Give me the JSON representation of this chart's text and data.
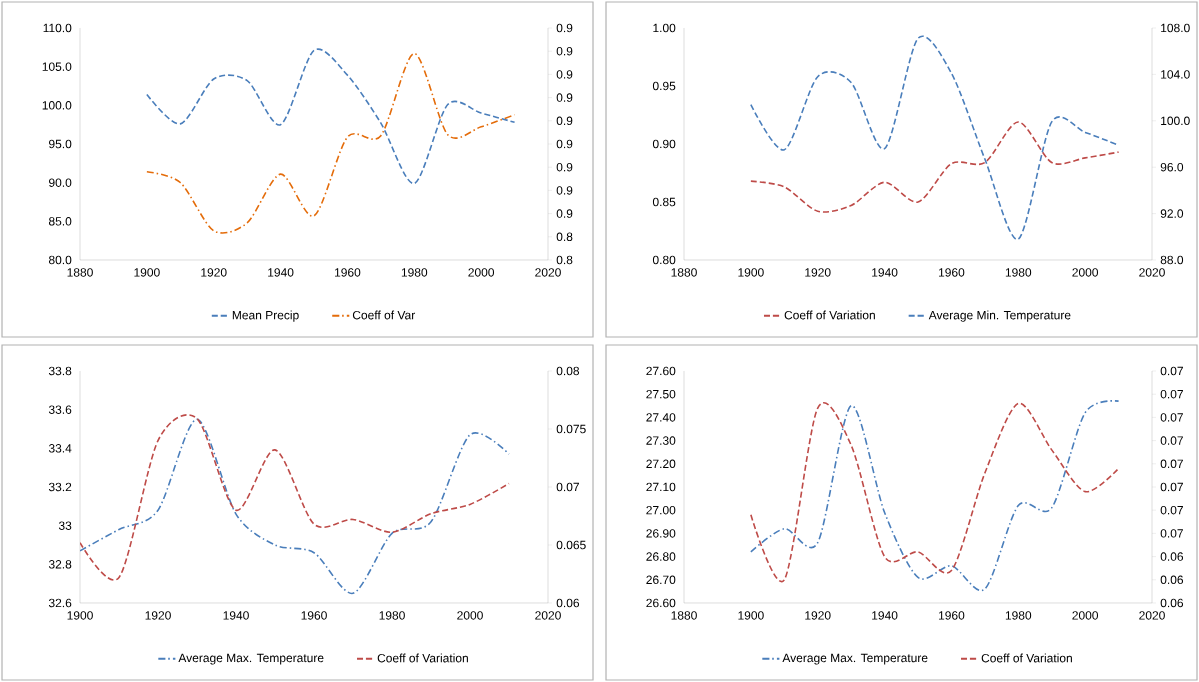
{
  "chart_data": [
    {
      "type": "line",
      "x": [
        1900,
        1910,
        1920,
        1930,
        1940,
        1950,
        1960,
        1970,
        1980,
        1990,
        2000,
        2010
      ],
      "xlim": [
        1880,
        2020
      ],
      "xticks": [
        1880,
        1900,
        1920,
        1940,
        1960,
        1980,
        2000,
        2020
      ],
      "ylim": [
        80,
        110
      ],
      "yticks": [
        {
          "value": 80,
          "label": "80.0"
        },
        {
          "value": 85,
          "label": "85.0"
        },
        {
          "value": 90,
          "label": "90.0"
        },
        {
          "value": 95,
          "label": "95.0"
        },
        {
          "value": 100,
          "label": "100.0"
        },
        {
          "value": 105,
          "label": "105.0"
        },
        {
          "value": 110,
          "label": "110.0"
        }
      ],
      "y2lim": [
        0.84,
        0.89
      ],
      "y2ticks": [
        {
          "value": 0.84,
          "label": "0.8"
        },
        {
          "value": 0.845,
          "label": "0.8"
        },
        {
          "value": 0.85,
          "label": "0.9"
        },
        {
          "value": 0.855,
          "label": "0.9"
        },
        {
          "value": 0.86,
          "label": "0.9"
        },
        {
          "value": 0.865,
          "label": "0.9"
        },
        {
          "value": 0.87,
          "label": "0.9"
        },
        {
          "value": 0.875,
          "label": "0.9"
        },
        {
          "value": 0.88,
          "label": "0.9"
        },
        {
          "value": 0.885,
          "label": "0.9"
        },
        {
          "value": 0.89,
          "label": "0.9"
        }
      ],
      "legend": "bottom",
      "marker": "none",
      "series": [
        {
          "name": "Mean Precip",
          "color": "#4a7ebb",
          "line_style": "dashed",
          "values": [
            101.4,
            97.6,
            103.4,
            103.2,
            97.5,
            107.1,
            103.9,
            97.7,
            89.9,
            100.1,
            99.0,
            97.8
          ]
        },
        {
          "name": "Coeff of Var",
          "color": "#e46c0a",
          "line_style": "dashdot",
          "axis": "y2",
          "values": [
            0.859,
            0.8567,
            0.8463,
            0.848,
            0.8585,
            0.8495,
            0.8665,
            0.8668,
            0.8845,
            0.867,
            0.8687,
            0.8713
          ]
        }
      ]
    },
    {
      "type": "line",
      "x": [
        1900,
        1910,
        1920,
        1930,
        1940,
        1950,
        1960,
        1970,
        1980,
        1990,
        2000,
        2010
      ],
      "xlim": [
        1880,
        2020
      ],
      "xticks": [
        1880,
        1900,
        1920,
        1940,
        1960,
        1980,
        2000,
        2020
      ],
      "ylim": [
        0.8,
        1.0
      ],
      "yticks": [
        {
          "value": 0.8,
          "label": "0.80"
        },
        {
          "value": 0.85,
          "label": "0.85"
        },
        {
          "value": 0.9,
          "label": "0.90"
        },
        {
          "value": 0.95,
          "label": "0.95"
        },
        {
          "value": 1.0,
          "label": "1.00"
        }
      ],
      "y2lim": [
        88,
        108
      ],
      "y2ticks": [
        {
          "value": 88,
          "label": "88.0"
        },
        {
          "value": 92,
          "label": "92.0"
        },
        {
          "value": 96,
          "label": "96.0"
        },
        {
          "value": 100,
          "label": "100.0"
        },
        {
          "value": 104,
          "label": "104.0"
        },
        {
          "value": 108,
          "label": "108.0"
        }
      ],
      "legend": "bottom",
      "marker": "none",
      "series": [
        {
          "name": "Coeff of Variation",
          "color": "#be4b48",
          "line_style": "dashed",
          "values": [
            0.868,
            0.863,
            0.842,
            0.847,
            0.867,
            0.85,
            0.883,
            0.884,
            0.919,
            0.884,
            0.888,
            0.893
          ]
        },
        {
          "name": "Average Min. Temperature",
          "color": "#4a7ebb",
          "line_style": "dashed",
          "axis": "y2",
          "values": [
            101.4,
            97.5,
            103.8,
            103.3,
            97.6,
            107.1,
            104.1,
            96.7,
            89.8,
            99.9,
            99.0,
            97.9
          ]
        }
      ]
    },
    {
      "type": "line",
      "x": [
        1900,
        1910,
        1920,
        1930,
        1940,
        1950,
        1960,
        1970,
        1980,
        1990,
        2000,
        2010
      ],
      "xlim": [
        1900,
        2020
      ],
      "xticks": [
        1900,
        1920,
        1940,
        1960,
        1980,
        2000,
        2020
      ],
      "ylim": [
        32.6,
        33.8
      ],
      "yticks": [
        32.6,
        32.8,
        33,
        33.2,
        33.4,
        33.6,
        33.8
      ],
      "y2lim": [
        0.06,
        0.08
      ],
      "y2ticks": [
        0.06,
        0.065,
        0.07,
        0.075,
        0.08
      ],
      "legend": "bottom",
      "marker": "none",
      "series": [
        {
          "name": "Average Max. Temperature",
          "color": "#4a7ebb",
          "line_style": "dashdot",
          "values": [
            32.87,
            32.98,
            33.08,
            33.55,
            33.06,
            32.9,
            32.86,
            32.65,
            32.96,
            33.02,
            33.47,
            33.37
          ]
        },
        {
          "name": "Coeff of Variation",
          "color": "#be4b48",
          "line_style": "dashed",
          "axis": "y2",
          "values": [
            0.0652,
            0.0622,
            0.074,
            0.0759,
            0.068,
            0.0732,
            0.0668,
            0.0672,
            0.0661,
            0.0677,
            0.0685,
            0.0703
          ]
        }
      ]
    },
    {
      "type": "line",
      "x": [
        1900,
        1910,
        1920,
        1930,
        1940,
        1950,
        1960,
        1970,
        1980,
        1990,
        2000,
        2010
      ],
      "xlim": [
        1880,
        2020
      ],
      "xticks": [
        1880,
        1900,
        1920,
        1940,
        1960,
        1980,
        2000,
        2020
      ],
      "ylim": [
        26.6,
        27.6
      ],
      "yticks": [
        {
          "value": 26.6,
          "label": "26.60"
        },
        {
          "value": 26.7,
          "label": "26.70"
        },
        {
          "value": 26.8,
          "label": "26.80"
        },
        {
          "value": 26.9,
          "label": "26.90"
        },
        {
          "value": 27.0,
          "label": "27.00"
        },
        {
          "value": 27.1,
          "label": "27.10"
        },
        {
          "value": 27.2,
          "label": "27.20"
        },
        {
          "value": 27.3,
          "label": "27.30"
        },
        {
          "value": 27.4,
          "label": "27.40"
        },
        {
          "value": 27.5,
          "label": "27.50"
        },
        {
          "value": 27.6,
          "label": "27.60"
        }
      ],
      "y2lim": [
        0.0635,
        0.0685
      ],
      "y2ticks": [
        {
          "value": 0.0635,
          "label": "0.06"
        },
        {
          "value": 0.064,
          "label": "0.06"
        },
        {
          "value": 0.0645,
          "label": "0.06"
        },
        {
          "value": 0.065,
          "label": "0.07"
        },
        {
          "value": 0.0655,
          "label": "0.07"
        },
        {
          "value": 0.066,
          "label": "0.07"
        },
        {
          "value": 0.0665,
          "label": "0.07"
        },
        {
          "value": 0.067,
          "label": "0.07"
        },
        {
          "value": 0.0675,
          "label": "0.07"
        },
        {
          "value": 0.068,
          "label": "0.07"
        },
        {
          "value": 0.0685,
          "label": "0.07"
        }
      ],
      "legend": "bottom",
      "marker": "none",
      "series": [
        {
          "name": "Average Max. Temperature",
          "color": "#4a7ebb",
          "line_style": "dashdot",
          "values": [
            26.82,
            26.92,
            26.86,
            27.45,
            26.99,
            26.71,
            26.76,
            26.66,
            27.02,
            27.01,
            27.42,
            27.47
          ]
        },
        {
          "name": "Coeff of Variation",
          "color": "#be4b48",
          "line_style": "dashed",
          "axis": "y2",
          "values": [
            0.0654,
            0.064,
            0.0677,
            0.0669,
            0.0645,
            0.0646,
            0.0642,
            0.0663,
            0.0678,
            0.0668,
            0.0659,
            0.0664
          ]
        }
      ]
    }
  ]
}
